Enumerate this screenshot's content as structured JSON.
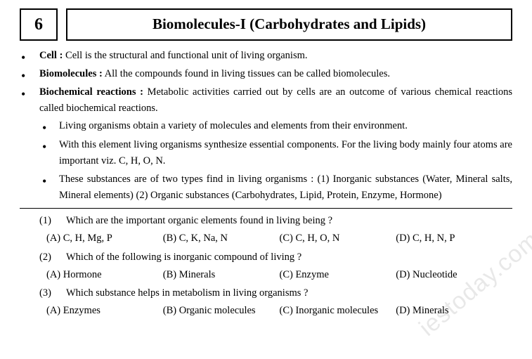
{
  "header": {
    "chapter_number": "6",
    "title": "Biomolecules-I (Carbohydrates and Lipids)"
  },
  "intro": [
    {
      "term": "Cell :",
      "text": " Cell is the structural and functional unit of living organism."
    },
    {
      "term": "Biomolecules :",
      "text": " All the compounds found in living tissues can be called biomolecules."
    },
    {
      "term": "Biochemical reactions :",
      "text": " Metabolic activities carried out by cells are an outcome of various chemical reactions called biochemical reactions."
    }
  ],
  "sub_intro": [
    "Living organisms obtain a variety of molecules and elements from their environment.",
    "With this element living organisms synthesize essential components. For the living body mainly four atoms are important viz. C, H, O, N.",
    "These substances are of two types find in living organisms : (1) Inorganic substances (Water, Mineral salts, Mineral elements) (2) Organic substances (Carbohydrates, Lipid, Protein, Enzyme, Hormone)"
  ],
  "questions": [
    {
      "num": "(1)",
      "text": "Which are the important organic elements found in living being ?",
      "options": [
        "(A) C, H, Mg, P",
        "(B) C, K, Na, N",
        "(C) C, H, O, N",
        "(D) C, H, N, P"
      ]
    },
    {
      "num": "(2)",
      "text": "Which of the following is inorganic compound of living ?",
      "options": [
        "(A) Hormone",
        "(B) Minerals",
        "(C) Enzyme",
        "(D) Nucleotide"
      ]
    },
    {
      "num": "(3)",
      "text": "Which substance helps in metabolism in living organisms ?",
      "options": [
        "(A) Enzymes",
        "(B) Organic molecules",
        "(C) Inorganic molecules",
        "(D) Minerals"
      ]
    }
  ],
  "watermark": "iestoday.com"
}
